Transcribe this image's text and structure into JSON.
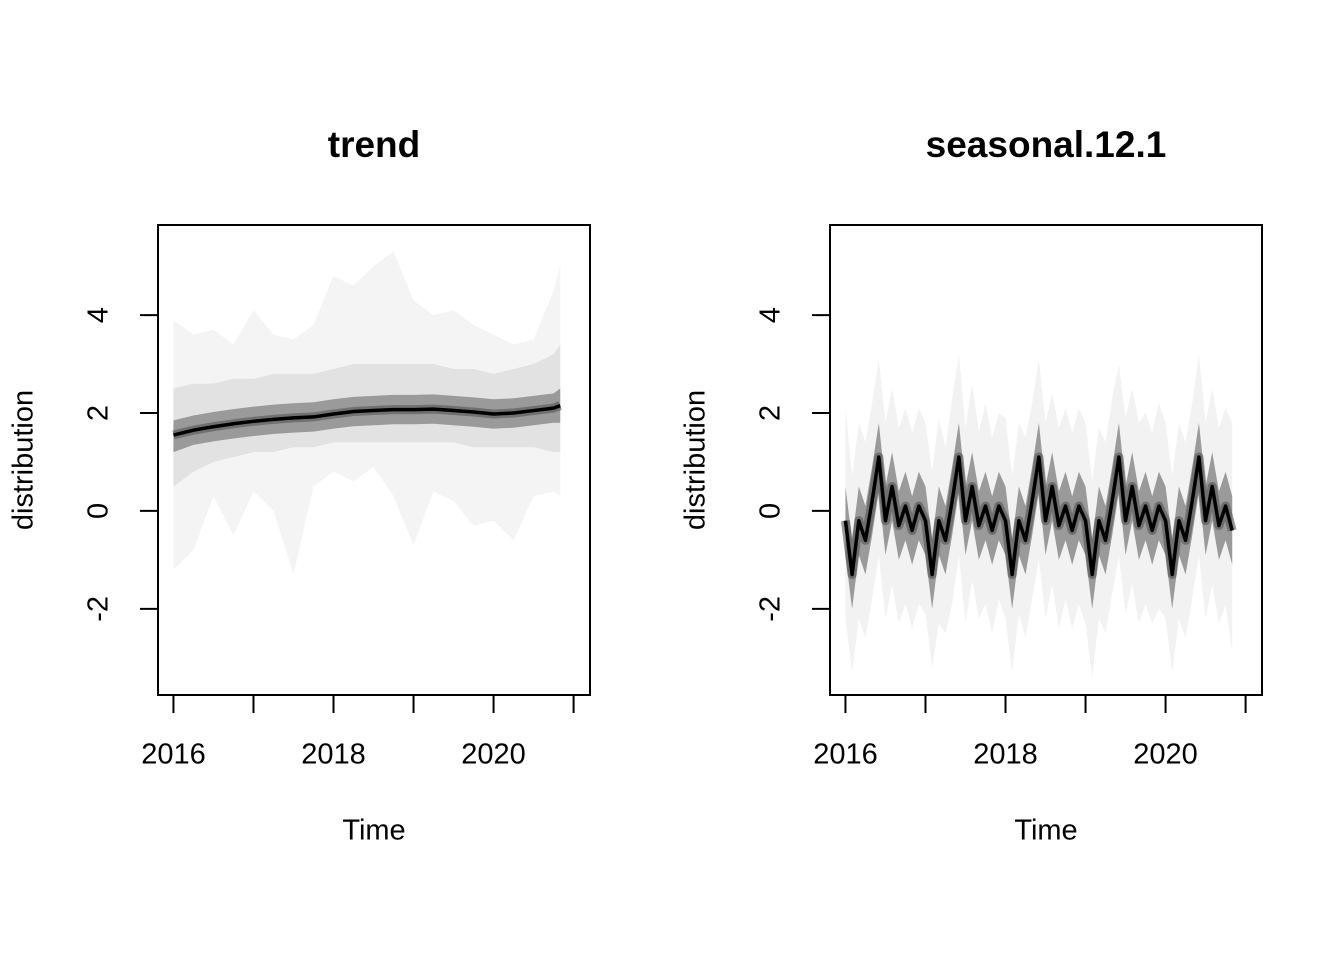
{
  "chart_data": [
    {
      "type": "fan",
      "title": "trend",
      "xlabel": "Time",
      "ylabel": "distribution",
      "x": [
        2016,
        2016.25,
        2016.5,
        2016.75,
        2017,
        2017.25,
        2017.5,
        2017.75,
        2018,
        2018.25,
        2018.5,
        2018.75,
        2019,
        2019.25,
        2019.5,
        2019.75,
        2020,
        2020.25,
        2020.5,
        2020.75,
        2020.833
      ],
      "median": {
        "color": "#000000",
        "values": [
          1.55,
          1.65,
          1.72,
          1.78,
          1.83,
          1.87,
          1.9,
          1.92,
          1.98,
          2.03,
          2.05,
          2.07,
          2.07,
          2.08,
          2.05,
          2.02,
          1.98,
          2.0,
          2.05,
          2.1,
          2.15
        ]
      },
      "bands": [
        {
          "color": "#f4f4f4",
          "upper": [
            3.9,
            3.6,
            3.7,
            3.4,
            4.1,
            3.6,
            3.5,
            3.8,
            4.8,
            4.6,
            5.0,
            5.3,
            4.3,
            4.0,
            4.1,
            3.8,
            3.6,
            3.4,
            3.5,
            4.5,
            5.0
          ],
          "lower": [
            -1.2,
            -0.8,
            0.3,
            -0.5,
            0.4,
            0.0,
            -1.3,
            0.5,
            0.8,
            0.6,
            0.9,
            0.3,
            -0.7,
            0.4,
            0.2,
            -0.3,
            -0.2,
            -0.6,
            0.3,
            0.4,
            0.3
          ]
        },
        {
          "color": "#e2e2e2",
          "upper": [
            2.5,
            2.6,
            2.6,
            2.7,
            2.7,
            2.8,
            2.8,
            2.8,
            2.9,
            3.0,
            3.0,
            3.0,
            3.0,
            3.0,
            2.9,
            2.9,
            2.8,
            2.9,
            3.0,
            3.2,
            3.4
          ],
          "lower": [
            0.5,
            0.8,
            1.0,
            1.1,
            1.2,
            1.2,
            1.3,
            1.3,
            1.4,
            1.4,
            1.4,
            1.4,
            1.4,
            1.4,
            1.4,
            1.3,
            1.3,
            1.3,
            1.3,
            1.2,
            1.2
          ]
        },
        {
          "color": "#9a9a9a",
          "upper": [
            1.85,
            1.95,
            2.02,
            2.08,
            2.13,
            2.17,
            2.2,
            2.22,
            2.28,
            2.33,
            2.35,
            2.37,
            2.37,
            2.38,
            2.35,
            2.32,
            2.28,
            2.3,
            2.35,
            2.4,
            2.5
          ],
          "lower": [
            1.2,
            1.35,
            1.42,
            1.48,
            1.53,
            1.57,
            1.6,
            1.62,
            1.68,
            1.73,
            1.75,
            1.77,
            1.77,
            1.78,
            1.75,
            1.72,
            1.68,
            1.7,
            1.75,
            1.8,
            1.8
          ]
        }
      ],
      "xlim": [
        2015.807,
        2021.205
      ],
      "ylim": [
        -3.76,
        5.84
      ],
      "xticks": [
        2016,
        {
          "value": 2017,
          "label": null
        },
        2018,
        {
          "value": 2019,
          "label": null
        },
        2020,
        {
          "value": 2021,
          "label": null
        }
      ],
      "yticks": [
        -2,
        0,
        2,
        4
      ]
    },
    {
      "type": "fan",
      "title": "seasonal.12.1",
      "xlabel": "Time",
      "ylabel": "distribution",
      "x": [
        2016,
        2016.083,
        2016.167,
        2016.25,
        2016.333,
        2016.417,
        2016.5,
        2016.583,
        2016.667,
        2016.75,
        2016.833,
        2016.917,
        2017,
        2017.083,
        2017.167,
        2017.25,
        2017.333,
        2017.417,
        2017.5,
        2017.583,
        2017.667,
        2017.75,
        2017.833,
        2017.917,
        2018,
        2018.083,
        2018.167,
        2018.25,
        2018.333,
        2018.417,
        2018.5,
        2018.583,
        2018.667,
        2018.75,
        2018.833,
        2018.917,
        2019,
        2019.083,
        2019.167,
        2019.25,
        2019.333,
        2019.417,
        2019.5,
        2019.583,
        2019.667,
        2019.75,
        2019.833,
        2019.917,
        2020,
        2020.083,
        2020.167,
        2020.25,
        2020.333,
        2020.417,
        2020.5,
        2020.583,
        2020.667,
        2020.75,
        2020.833
      ],
      "median": {
        "color": "#000000",
        "values": [
          -0.2,
          -1.3,
          -0.2,
          -0.6,
          0.2,
          1.1,
          -0.2,
          0.5,
          -0.3,
          0.1,
          -0.4,
          0.1,
          -0.2,
          -1.3,
          -0.2,
          -0.6,
          0.2,
          1.1,
          -0.2,
          0.5,
          -0.3,
          0.1,
          -0.4,
          0.1,
          -0.2,
          -1.3,
          -0.2,
          -0.6,
          0.2,
          1.1,
          -0.2,
          0.5,
          -0.3,
          0.1,
          -0.4,
          0.1,
          -0.2,
          -1.3,
          -0.2,
          -0.6,
          0.2,
          1.1,
          -0.2,
          0.5,
          -0.3,
          0.1,
          -0.4,
          0.1,
          -0.2,
          -1.3,
          -0.2,
          -0.6,
          0.2,
          1.1,
          -0.2,
          0.5,
          -0.3,
          0.1,
          -0.4
        ]
      },
      "bands": [
        {
          "color": "#f2f2f2",
          "upper": [
            2.1,
            0.7,
            1.8,
            1.4,
            2.2,
            3.1,
            1.8,
            2.5,
            1.7,
            2.1,
            1.6,
            2.1,
            1.8,
            0.8,
            1.9,
            1.3,
            2.3,
            3.2,
            1.7,
            2.6,
            1.6,
            2.2,
            1.5,
            2.0,
            1.9,
            0.7,
            1.8,
            1.5,
            2.2,
            3.1,
            1.8,
            2.4,
            1.7,
            2.1,
            1.6,
            2.1,
            1.8,
            0.6,
            1.7,
            1.4,
            2.3,
            3.0,
            1.9,
            2.5,
            1.8,
            2.0,
            1.6,
            2.2,
            1.8,
            0.7,
            1.8,
            1.4,
            2.2,
            3.2,
            1.8,
            2.5,
            1.7,
            2.1,
            1.8
          ],
          "lower": [
            -2.2,
            -3.3,
            -2.2,
            -2.6,
            -1.8,
            -0.9,
            -2.2,
            -1.5,
            -2.3,
            -1.9,
            -2.4,
            -1.9,
            -2.1,
            -3.2,
            -2.3,
            -2.5,
            -1.9,
            -0.9,
            -2.3,
            -1.4,
            -2.2,
            -1.9,
            -2.5,
            -1.8,
            -2.2,
            -3.3,
            -2.1,
            -2.6,
            -1.8,
            -1.0,
            -2.2,
            -1.5,
            -2.4,
            -1.8,
            -2.4,
            -1.9,
            -2.3,
            -3.4,
            -2.2,
            -2.5,
            -1.7,
            -0.9,
            -2.1,
            -1.5,
            -2.3,
            -1.9,
            -2.3,
            -2.0,
            -2.2,
            -3.3,
            -2.2,
            -2.6,
            -1.8,
            -0.9,
            -2.2,
            -1.5,
            -2.3,
            -1.9,
            -2.9
          ]
        },
        {
          "color": "#9a9a9a",
          "upper": [
            0.5,
            -0.6,
            0.5,
            0.1,
            0.9,
            1.8,
            0.5,
            1.2,
            0.4,
            0.8,
            0.3,
            0.8,
            0.5,
            -0.6,
            0.5,
            0.1,
            0.9,
            1.8,
            0.5,
            1.2,
            0.4,
            0.8,
            0.3,
            0.8,
            0.5,
            -0.6,
            0.5,
            0.1,
            0.9,
            1.8,
            0.5,
            1.2,
            0.4,
            0.8,
            0.3,
            0.8,
            0.5,
            -0.6,
            0.5,
            0.1,
            0.9,
            1.8,
            0.5,
            1.2,
            0.4,
            0.8,
            0.3,
            0.8,
            0.5,
            -0.6,
            0.5,
            0.1,
            0.9,
            1.8,
            0.5,
            1.2,
            0.4,
            0.8,
            0.3
          ],
          "lower": [
            -0.9,
            -2.0,
            -0.9,
            -1.3,
            -0.5,
            0.4,
            -0.9,
            -0.2,
            -1.0,
            -0.6,
            -1.1,
            -0.6,
            -0.9,
            -2.0,
            -0.9,
            -1.3,
            -0.5,
            0.4,
            -0.9,
            -0.2,
            -1.0,
            -0.6,
            -1.1,
            -0.6,
            -0.9,
            -2.0,
            -0.9,
            -1.3,
            -0.5,
            0.4,
            -0.9,
            -0.2,
            -1.0,
            -0.6,
            -1.1,
            -0.6,
            -0.9,
            -2.0,
            -0.9,
            -1.3,
            -0.5,
            0.4,
            -0.9,
            -0.2,
            -1.0,
            -0.6,
            -1.1,
            -0.6,
            -0.9,
            -2.0,
            -0.9,
            -1.3,
            -0.5,
            0.4,
            -0.9,
            -0.2,
            -1.0,
            -0.6,
            -1.1
          ]
        }
      ],
      "xlim": [
        2015.807,
        2021.205
      ],
      "ylim": [
        -3.76,
        5.84
      ],
      "xticks": [
        2016,
        {
          "value": 2017,
          "label": null
        },
        2018,
        {
          "value": 2019,
          "label": null
        },
        2020,
        {
          "value": 2021,
          "label": null
        }
      ],
      "yticks": [
        -2,
        0,
        2,
        4
      ]
    }
  ]
}
